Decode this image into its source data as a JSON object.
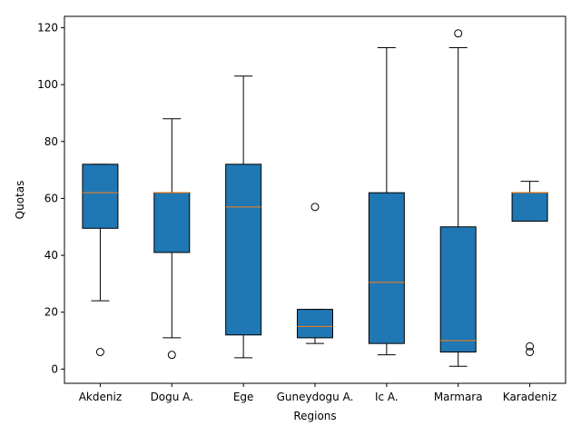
{
  "chart_data": {
    "type": "boxplot",
    "title": "",
    "xlabel": "Regions",
    "ylabel": "Quotas",
    "ylim": [
      -5,
      124
    ],
    "yticks": [
      0,
      20,
      40,
      60,
      80,
      100,
      120
    ],
    "grid": false,
    "box_color": "#1f77b4",
    "median_color": "#ff7f0e",
    "categories": [
      "Akdeniz",
      "Dogu A.",
      "Ege",
      "Guneydogu A.",
      "Ic A.",
      "Marmara",
      "Karadeniz"
    ],
    "boxes": [
      {
        "category": "Akdeniz",
        "whisker_low": 24,
        "q1": 49.5,
        "median": 62,
        "q3": 72,
        "whisker_high": 72,
        "outliers": [
          6
        ]
      },
      {
        "category": "Dogu A.",
        "whisker_low": 11,
        "q1": 41,
        "median": 62,
        "q3": 62,
        "whisker_high": 88,
        "outliers": [
          5
        ]
      },
      {
        "category": "Ege",
        "whisker_low": 4,
        "q1": 12,
        "median": 57,
        "q3": 72,
        "whisker_high": 103,
        "outliers": []
      },
      {
        "category": "Guneydogu A.",
        "whisker_low": 9,
        "q1": 11,
        "median": 15,
        "q3": 21,
        "whisker_high": 21,
        "outliers": [
          57
        ]
      },
      {
        "category": "Ic A.",
        "whisker_low": 5,
        "q1": 9,
        "median": 30.5,
        "q3": 62,
        "whisker_high": 113,
        "outliers": []
      },
      {
        "category": "Marmara",
        "whisker_low": 1,
        "q1": 6,
        "median": 10,
        "q3": 50,
        "whisker_high": 113,
        "outliers": [
          118
        ]
      },
      {
        "category": "Karadeniz",
        "whisker_low": 52,
        "q1": 52,
        "median": 62,
        "q3": 62,
        "whisker_high": 66,
        "outliers": [
          6,
          8
        ]
      }
    ]
  }
}
